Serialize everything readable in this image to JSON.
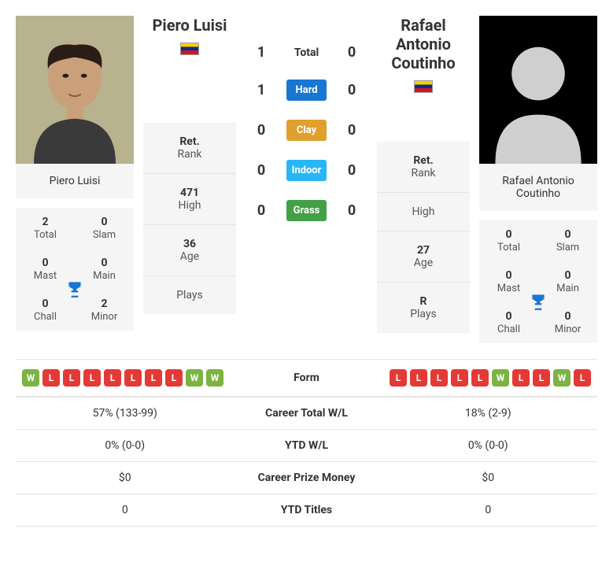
{
  "players": {
    "p1": {
      "name": "Piero Luisi",
      "titles": {
        "total": 2,
        "slam": 0,
        "mast": 0,
        "main": 0,
        "chall": 0,
        "minor": 2
      },
      "labels": {
        "total": "Total",
        "slam": "Slam",
        "mast": "Mast",
        "main": "Main",
        "chall": "Chall",
        "minor": "Minor"
      },
      "rank": {
        "ret_lbl": "Ret.",
        "rank_lbl": "Rank",
        "high_val": "471",
        "high_lbl": "High",
        "age_val": "36",
        "age_lbl": "Age",
        "plays_val": "",
        "plays_lbl": "Plays"
      }
    },
    "p2": {
      "name": "Rafael Antonio Coutinho",
      "titles": {
        "total": 0,
        "slam": 0,
        "mast": 0,
        "main": 0,
        "chall": 0,
        "minor": 0
      },
      "labels": {
        "total": "Total",
        "slam": "Slam",
        "mast": "Mast",
        "main": "Main",
        "chall": "Chall",
        "minor": "Minor"
      },
      "rank": {
        "ret_lbl": "Ret.",
        "rank_lbl": "Rank",
        "high_val": "",
        "high_lbl": "High",
        "age_val": "27",
        "age_lbl": "Age",
        "plays_val": "R",
        "plays_lbl": "Plays"
      }
    }
  },
  "h2h": {
    "rows": [
      {
        "p1": 1,
        "p2": 0,
        "label": "Total",
        "bg": "",
        "color": "#333"
      },
      {
        "p1": 1,
        "p2": 0,
        "label": "Hard",
        "bg": "#1976d2",
        "color": "#ffffff"
      },
      {
        "p1": 0,
        "p2": 0,
        "label": "Clay",
        "bg": "#e0a02e",
        "color": "#ffffff"
      },
      {
        "p1": 0,
        "p2": 0,
        "label": "Indoor",
        "bg": "#29b6f6",
        "color": "#ffffff"
      },
      {
        "p1": 0,
        "p2": 0,
        "label": "Grass",
        "bg": "#43a047",
        "color": "#ffffff"
      }
    ]
  },
  "form": {
    "label": "Form",
    "p1": [
      "W",
      "L",
      "L",
      "L",
      "L",
      "L",
      "L",
      "L",
      "W",
      "W"
    ],
    "p2": [
      "L",
      "L",
      "L",
      "L",
      "L",
      "W",
      "L",
      "L",
      "W",
      "L"
    ]
  },
  "stats": [
    {
      "p1": "57% (133-99)",
      "label": "Career Total W/L",
      "p2": "18% (2-9)"
    },
    {
      "p1": "0% (0-0)",
      "label": "YTD W/L",
      "p2": "0% (0-0)"
    },
    {
      "p1": "$0",
      "label": "Career Prize Money",
      "p2": "$0"
    },
    {
      "p1": "0",
      "label": "YTD Titles",
      "p2": "0"
    }
  ],
  "colors": {
    "win": "#7cb342",
    "loss": "#e53935",
    "trophy": "#1976d2"
  }
}
